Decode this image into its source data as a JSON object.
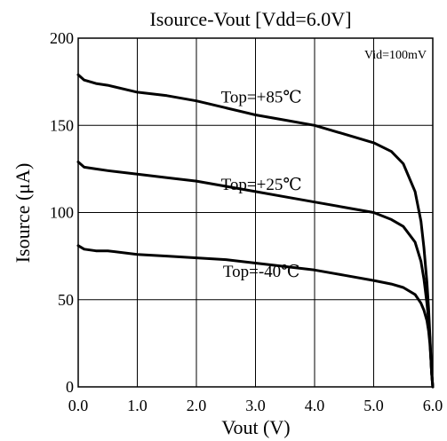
{
  "chart_data": {
    "type": "line",
    "title": "Isource-Vout [Vdd=6.0V]",
    "xlabel": "Vout (V)",
    "ylabel": "Isource (μA)",
    "xlim": [
      0,
      6
    ],
    "ylim": [
      0,
      200
    ],
    "x_ticks": [
      "0.0",
      "1.0",
      "2.0",
      "3.0",
      "4.0",
      "5.0",
      "6.0"
    ],
    "y_ticks": [
      "0",
      "50",
      "100",
      "150",
      "200"
    ],
    "grid": true,
    "condition": "Vid=100mV",
    "series": [
      {
        "name": "Top=+85℃",
        "x": [
          0,
          0.1,
          0.3,
          0.5,
          1.0,
          1.5,
          2.0,
          2.5,
          3.0,
          3.5,
          4.0,
          4.5,
          5.0,
          5.3,
          5.5,
          5.7,
          5.8,
          5.85,
          5.9,
          5.93,
          5.95,
          5.97,
          5.98,
          6.0
        ],
        "values": [
          179,
          176,
          174,
          173,
          169,
          167,
          164,
          160,
          156,
          153,
          150,
          145,
          140,
          135,
          128,
          112,
          95,
          80,
          60,
          45,
          30,
          15,
          8,
          0
        ]
      },
      {
        "name": "Top=+25℃",
        "x": [
          0,
          0.1,
          0.3,
          0.5,
          1.0,
          1.5,
          2.0,
          2.5,
          3.0,
          3.5,
          4.0,
          4.5,
          5.0,
          5.3,
          5.5,
          5.7,
          5.8,
          5.85,
          5.9,
          5.93,
          5.95,
          5.97,
          5.98,
          6.0
        ],
        "values": [
          129,
          126,
          125,
          124,
          122,
          120,
          118,
          115,
          112,
          109,
          106,
          103,
          100,
          96,
          92,
          83,
          72,
          62,
          48,
          38,
          28,
          15,
          8,
          0
        ]
      },
      {
        "name": "Top=-40℃",
        "x": [
          0,
          0.1,
          0.3,
          0.5,
          1.0,
          1.5,
          2.0,
          2.5,
          3.0,
          3.5,
          4.0,
          4.5,
          5.0,
          5.3,
          5.5,
          5.7,
          5.8,
          5.85,
          5.9,
          5.93,
          5.95,
          5.97,
          5.98,
          6.0
        ],
        "values": [
          81,
          79,
          78,
          78,
          76,
          75,
          74,
          73,
          71,
          69,
          67,
          64,
          61,
          59,
          57,
          53,
          48,
          44,
          38,
          32,
          25,
          15,
          8,
          0
        ]
      }
    ]
  }
}
